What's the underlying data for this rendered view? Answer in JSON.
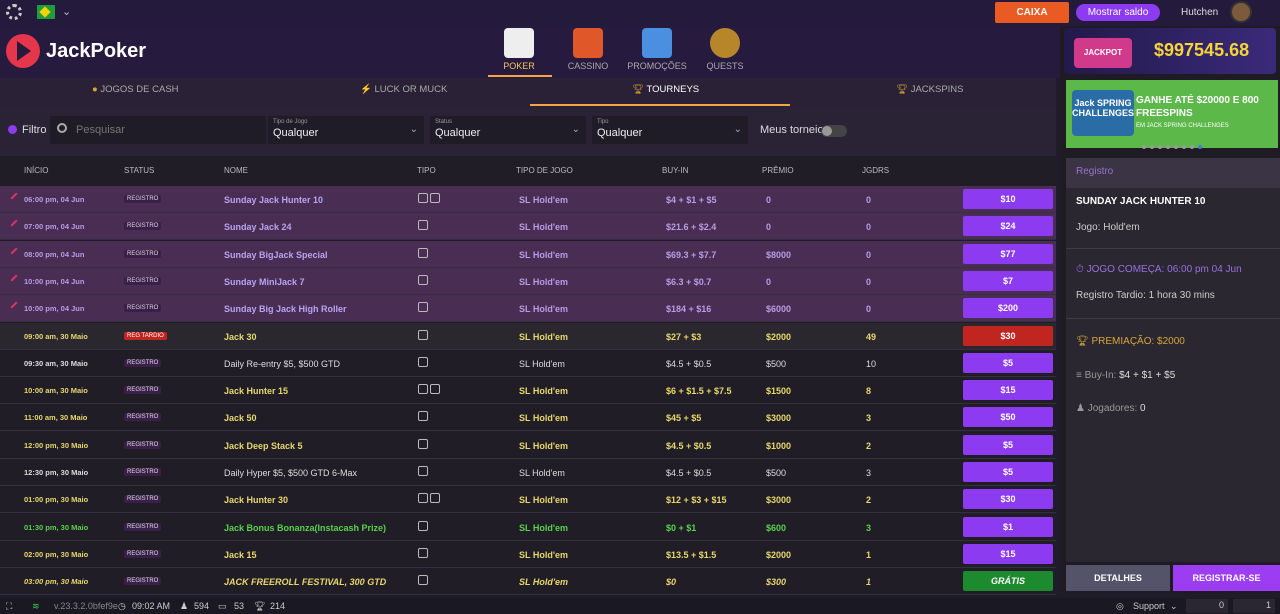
{
  "topbar": {
    "caixa": "CAIXA",
    "mostrar_saldo": "Mostrar saldo",
    "username": "Hutchen"
  },
  "header": {
    "logo": "JackPoker",
    "nav": [
      {
        "label": "POKER",
        "active": true
      },
      {
        "label": "CASSINO",
        "active": false
      },
      {
        "label": "PROMOÇÕES",
        "active": false
      },
      {
        "label": "QUESTS",
        "active": false
      }
    ]
  },
  "subnav": {
    "jogos_de_cash": "JOGOS DE CASH",
    "luck_or_muck": "LUCK OR MUCK",
    "tourneys": "TOURNEYS",
    "jackspins": "JACKSPINS"
  },
  "filters": {
    "filtro": "Filtro",
    "search_placeholder": "Pesquisar",
    "tipo_de_jogo_label": "Tipo de Jogo",
    "tipo_de_jogo_value": "Qualquer",
    "status_label": "Status",
    "status_value": "Qualquer",
    "tipo_label": "Tipo",
    "tipo_value": "Qualquer",
    "meus_torneios": "Meus torneios"
  },
  "table": {
    "headers": [
      "INÍCIO",
      "STATUS",
      "NOME",
      "TIPO",
      "TIPO DE JOGO",
      "BUY-IN",
      "PRÊMIO",
      "JGDRS"
    ],
    "rows": [
      {
        "inicio": "06:00 pm, 04 Jun",
        "status": "REGISTRO",
        "nome": "Sunday Jack Hunter 10",
        "tipo_icons": 2,
        "jogo": "SL Hold'em",
        "buyin": "$4 + $1 + $5",
        "premio": "0",
        "jgdrs": "0",
        "btn": "$10",
        "style": "reg"
      },
      {
        "inicio": "07:00 pm, 04 Jun",
        "status": "REGISTRO",
        "nome": "Sunday Jack 24",
        "tipo_icons": 1,
        "jogo": "SL Hold'em",
        "buyin": "$21.6 + $2.4",
        "premio": "0",
        "jgdrs": "0",
        "btn": "$24",
        "style": "reg"
      },
      {
        "inicio": "08:00 pm, 04 Jun",
        "status": "REGISTRO",
        "nome": "Sunday BigJack Special",
        "tipo_icons": 1,
        "jogo": "SL Hold'em",
        "buyin": "$69.3 + $7.7",
        "premio": "$8000",
        "jgdrs": "0",
        "btn": "$77",
        "style": "reg"
      },
      {
        "inicio": "10:00 pm, 04 Jun",
        "status": "REGISTRO",
        "nome": "Sunday MiniJack 7",
        "tipo_icons": 1,
        "jogo": "SL Hold'em",
        "buyin": "$6.3 + $0.7",
        "premio": "0",
        "jgdrs": "0",
        "btn": "$7",
        "style": "reg"
      },
      {
        "inicio": "10:00 pm, 04 Jun",
        "status": "REGISTRO",
        "nome": "Sunday Big Jack High Roller",
        "tipo_icons": 1,
        "jogo": "SL Hold'em",
        "buyin": "$184 + $16",
        "premio": "$6000",
        "jgdrs": "0",
        "btn": "$200",
        "style": "reg"
      },
      {
        "inicio": "09:00 am, 30 Maio",
        "status": "REG TARDIO",
        "nome": "Jack 30",
        "tipo_icons": 1,
        "jogo": "SL Hold'em",
        "buyin": "$27 + $3",
        "premio": "$2000",
        "jgdrs": "49",
        "btn": "$30",
        "style": "late"
      },
      {
        "inicio": "09:30 am, 30 Maio",
        "status": "REGISTRO",
        "nome": "Daily Re-entry $5, $500 GTD",
        "tipo_icons": 1,
        "jogo": "SL Hold'em",
        "buyin": "$4.5 + $0.5",
        "premio": "$500",
        "jgdrs": "10",
        "btn": "$5",
        "style": "white"
      },
      {
        "inicio": "10:00 am, 30 Maio",
        "status": "REGISTRO",
        "nome": "Jack Hunter 15",
        "tipo_icons": 2,
        "jogo": "SL Hold'em",
        "buyin": "$6 + $1.5 + $7.5",
        "premio": "$1500",
        "jgdrs": "8",
        "btn": "$15",
        "style": "yellow"
      },
      {
        "inicio": "11:00 am, 30 Maio",
        "status": "REGISTRO",
        "nome": "Jack 50",
        "tipo_icons": 1,
        "jogo": "SL Hold'em",
        "buyin": "$45 + $5",
        "premio": "$3000",
        "jgdrs": "3",
        "btn": "$50",
        "style": "yellow"
      },
      {
        "inicio": "12:00 pm, 30 Maio",
        "status": "REGISTRO",
        "nome": "Jack Deep Stack 5",
        "tipo_icons": 1,
        "jogo": "SL Hold'em",
        "buyin": "$4.5 + $0.5",
        "premio": "$1000",
        "jgdrs": "2",
        "btn": "$5",
        "style": "yellow"
      },
      {
        "inicio": "12:30 pm, 30 Maio",
        "status": "REGISTRO",
        "nome": "Daily Hyper $5, $500 GTD 6-Max",
        "tipo_icons": 1,
        "jogo": "SL Hold'em",
        "buyin": "$4.5 + $0.5",
        "premio": "$500",
        "jgdrs": "3",
        "btn": "$5",
        "style": "white"
      },
      {
        "inicio": "01:00 pm, 30 Maio",
        "status": "REGISTRO",
        "nome": "Jack Hunter 30",
        "tipo_icons": 2,
        "jogo": "SL Hold'em",
        "buyin": "$12 + $3 + $15",
        "premio": "$3000",
        "jgdrs": "2",
        "btn": "$30",
        "style": "yellow"
      },
      {
        "inicio": "01:30 pm, 30 Maio",
        "status": "REGISTRO",
        "nome": "Jack Bonus Bonanza(Instacash Prize)",
        "tipo_icons": 1,
        "jogo": "SL Hold'em",
        "buyin": "$0 + $1",
        "premio": "$600",
        "jgdrs": "3",
        "btn": "$1",
        "style": "green"
      },
      {
        "inicio": "02:00 pm, 30 Maio",
        "status": "REGISTRO",
        "nome": "Jack 15",
        "tipo_icons": 1,
        "jogo": "SL Hold'em",
        "buyin": "$13.5 + $1.5",
        "premio": "$2000",
        "jgdrs": "1",
        "btn": "$15",
        "style": "yellow"
      },
      {
        "inicio": "03:00 pm, 30 Maio",
        "status": "REGISTRO",
        "nome": "JACK FREEROLL FESTIVAL, 300 GTD",
        "tipo_icons": 1,
        "jogo": "SL Hold'em",
        "buyin": "$0",
        "premio": "$300",
        "jgdrs": "1",
        "btn": "GRÁTIS",
        "style": "italic"
      }
    ]
  },
  "side": {
    "jackpot_logo": "JACKPOT",
    "jackpot_amount": "$997545.68",
    "banner_logo": "Jack SPRING CHALLENGES",
    "banner_text": "GANHE ATÉ $20000 E 800 FREESPINS",
    "banner_sub": "EM JACK SPRING CHALLENGES",
    "panel_head": "Registro",
    "title": "SUNDAY JACK HUNTER 10",
    "jogo": "Jogo:  Hold'em",
    "start": "JOGO COMEÇA: 06:00 pm 04 Jun",
    "late_reg": "Registro Tardio: 1 hora 30 mins",
    "prize": "PREMIAÇÃO: $2000",
    "buyin_label": "Buy-In:",
    "buyin_value": "$4 + $1 + $5",
    "players_label": "Jogadores:",
    "players_value": "0",
    "detalhes": "DETALHES",
    "registrar": "REGISTRAR-SE"
  },
  "statusbar": {
    "version": "v.23.3.2.0bfef9e",
    "time": "09:02 AM",
    "users": "594",
    "tables": "53",
    "tourneys": "214",
    "support": "Support",
    "c1": "0",
    "c2": "1"
  },
  "colors": {
    "accent": "#8c3bf1",
    "caixa": "#ea5b24",
    "late_red": "#c0261f",
    "free_green": "#1e8a2e",
    "yellow_text": "#e8d86a",
    "green_text": "#58d34a"
  }
}
